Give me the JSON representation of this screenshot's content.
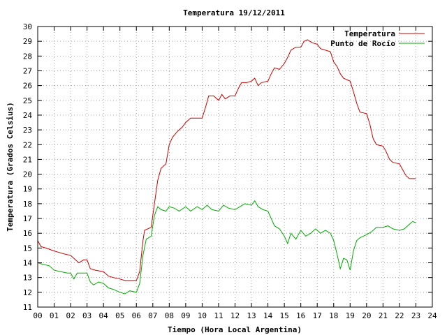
{
  "chart_data": {
    "type": "line",
    "title": "Temperatura 19/12/2011",
    "xlabel": "Tiempo (Hora Local Argentina)",
    "ylabel": "Temperatura (Grados Celsius)",
    "xlim": [
      0,
      24
    ],
    "ylim": [
      11,
      30
    ],
    "x_ticks": [
      "00",
      "01",
      "02",
      "03",
      "04",
      "05",
      "06",
      "07",
      "08",
      "09",
      "10",
      "11",
      "12",
      "13",
      "14",
      "15",
      "16",
      "17",
      "18",
      "19",
      "20",
      "21",
      "22",
      "23",
      "24"
    ],
    "y_ticks": [
      "11",
      "12",
      "13",
      "14",
      "15",
      "16",
      "17",
      "18",
      "19",
      "20",
      "21",
      "22",
      "23",
      "24",
      "25",
      "26",
      "27",
      "28",
      "29",
      "30"
    ],
    "grid": true,
    "legend_position": "top-right",
    "series": [
      {
        "name": "Temperatura",
        "color": "#cc0000",
        "points": [
          [
            0.0,
            15.5
          ],
          [
            0.2,
            15.1
          ],
          [
            0.5,
            15.0
          ],
          [
            1.0,
            14.8
          ],
          [
            1.3,
            14.7
          ],
          [
            1.6,
            14.6
          ],
          [
            2.0,
            14.5
          ],
          [
            2.3,
            14.2
          ],
          [
            2.5,
            14.0
          ],
          [
            2.8,
            14.2
          ],
          [
            3.0,
            14.2
          ],
          [
            3.2,
            13.6
          ],
          [
            3.5,
            13.5
          ],
          [
            4.0,
            13.4
          ],
          [
            4.3,
            13.1
          ],
          [
            4.6,
            13.0
          ],
          [
            5.0,
            12.9
          ],
          [
            5.3,
            12.8
          ],
          [
            5.6,
            12.8
          ],
          [
            6.0,
            12.8
          ],
          [
            6.2,
            13.4
          ],
          [
            6.4,
            15.5
          ],
          [
            6.5,
            16.2
          ],
          [
            6.9,
            16.4
          ],
          [
            7.1,
            18.0
          ],
          [
            7.3,
            19.6
          ],
          [
            7.5,
            20.4
          ],
          [
            7.8,
            20.7
          ],
          [
            8.0,
            22.0
          ],
          [
            8.2,
            22.5
          ],
          [
            8.5,
            22.9
          ],
          [
            8.8,
            23.2
          ],
          [
            9.0,
            23.5
          ],
          [
            9.3,
            23.8
          ],
          [
            9.7,
            23.8
          ],
          [
            10.0,
            23.8
          ],
          [
            10.2,
            24.5
          ],
          [
            10.4,
            25.3
          ],
          [
            10.7,
            25.3
          ],
          [
            11.0,
            25.0
          ],
          [
            11.2,
            25.4
          ],
          [
            11.4,
            25.1
          ],
          [
            11.7,
            25.3
          ],
          [
            12.0,
            25.3
          ],
          [
            12.2,
            25.8
          ],
          [
            12.4,
            26.2
          ],
          [
            12.7,
            26.2
          ],
          [
            13.0,
            26.3
          ],
          [
            13.2,
            26.5
          ],
          [
            13.4,
            26.0
          ],
          [
            13.6,
            26.2
          ],
          [
            14.0,
            26.3
          ],
          [
            14.2,
            26.8
          ],
          [
            14.4,
            27.2
          ],
          [
            14.7,
            27.1
          ],
          [
            15.0,
            27.5
          ],
          [
            15.2,
            27.9
          ],
          [
            15.4,
            28.4
          ],
          [
            15.7,
            28.6
          ],
          [
            16.0,
            28.6
          ],
          [
            16.2,
            29.0
          ],
          [
            16.4,
            29.1
          ],
          [
            16.7,
            28.9
          ],
          [
            17.0,
            28.8
          ],
          [
            17.2,
            28.5
          ],
          [
            17.5,
            28.4
          ],
          [
            17.8,
            28.3
          ],
          [
            18.0,
            27.6
          ],
          [
            18.2,
            27.3
          ],
          [
            18.4,
            26.8
          ],
          [
            18.6,
            26.5
          ],
          [
            19.0,
            26.3
          ],
          [
            19.2,
            25.6
          ],
          [
            19.4,
            24.8
          ],
          [
            19.6,
            24.2
          ],
          [
            20.0,
            24.1
          ],
          [
            20.2,
            23.4
          ],
          [
            20.4,
            22.4
          ],
          [
            20.6,
            22.0
          ],
          [
            21.0,
            21.9
          ],
          [
            21.2,
            21.5
          ],
          [
            21.4,
            21.0
          ],
          [
            21.6,
            20.8
          ],
          [
            22.0,
            20.7
          ],
          [
            22.2,
            20.3
          ],
          [
            22.4,
            19.9
          ],
          [
            22.6,
            19.7
          ],
          [
            23.0,
            19.7
          ]
        ]
      },
      {
        "name": "Punto de Rocío",
        "color": "#00aa00",
        "points": [
          [
            0.0,
            14.0
          ],
          [
            0.3,
            13.9
          ],
          [
            0.7,
            13.8
          ],
          [
            1.0,
            13.5
          ],
          [
            1.4,
            13.4
          ],
          [
            1.8,
            13.3
          ],
          [
            2.0,
            13.3
          ],
          [
            2.2,
            12.9
          ],
          [
            2.4,
            13.3
          ],
          [
            2.8,
            13.3
          ],
          [
            3.0,
            13.3
          ],
          [
            3.2,
            12.7
          ],
          [
            3.4,
            12.5
          ],
          [
            3.7,
            12.7
          ],
          [
            4.0,
            12.6
          ],
          [
            4.3,
            12.3
          ],
          [
            4.6,
            12.2
          ],
          [
            5.0,
            12.0
          ],
          [
            5.3,
            11.9
          ],
          [
            5.6,
            12.1
          ],
          [
            6.0,
            12.0
          ],
          [
            6.2,
            12.6
          ],
          [
            6.4,
            14.5
          ],
          [
            6.6,
            15.6
          ],
          [
            6.9,
            15.8
          ],
          [
            7.1,
            17.2
          ],
          [
            7.3,
            17.8
          ],
          [
            7.5,
            17.6
          ],
          [
            7.8,
            17.5
          ],
          [
            8.0,
            17.8
          ],
          [
            8.3,
            17.7
          ],
          [
            8.6,
            17.5
          ],
          [
            9.0,
            17.8
          ],
          [
            9.3,
            17.5
          ],
          [
            9.7,
            17.8
          ],
          [
            10.0,
            17.6
          ],
          [
            10.3,
            17.9
          ],
          [
            10.6,
            17.6
          ],
          [
            11.0,
            17.5
          ],
          [
            11.3,
            17.9
          ],
          [
            11.6,
            17.7
          ],
          [
            12.0,
            17.6
          ],
          [
            12.3,
            17.8
          ],
          [
            12.6,
            18.0
          ],
          [
            13.0,
            17.9
          ],
          [
            13.2,
            18.2
          ],
          [
            13.4,
            17.8
          ],
          [
            13.7,
            17.6
          ],
          [
            14.0,
            17.5
          ],
          [
            14.2,
            17.0
          ],
          [
            14.4,
            16.5
          ],
          [
            14.7,
            16.3
          ],
          [
            15.0,
            15.8
          ],
          [
            15.2,
            15.3
          ],
          [
            15.4,
            16.0
          ],
          [
            15.7,
            15.6
          ],
          [
            16.0,
            16.2
          ],
          [
            16.3,
            15.8
          ],
          [
            16.6,
            16.0
          ],
          [
            16.9,
            16.3
          ],
          [
            17.2,
            16.0
          ],
          [
            17.5,
            16.2
          ],
          [
            17.8,
            16.0
          ],
          [
            18.0,
            15.5
          ],
          [
            18.2,
            14.6
          ],
          [
            18.4,
            13.6
          ],
          [
            18.6,
            14.3
          ],
          [
            18.8,
            14.2
          ],
          [
            19.0,
            13.5
          ],
          [
            19.2,
            14.8
          ],
          [
            19.4,
            15.5
          ],
          [
            19.6,
            15.7
          ],
          [
            20.0,
            15.9
          ],
          [
            20.3,
            16.1
          ],
          [
            20.6,
            16.4
          ],
          [
            21.0,
            16.4
          ],
          [
            21.3,
            16.5
          ],
          [
            21.6,
            16.3
          ],
          [
            22.0,
            16.2
          ],
          [
            22.3,
            16.3
          ],
          [
            22.6,
            16.6
          ],
          [
            22.8,
            16.8
          ],
          [
            23.0,
            16.7
          ]
        ]
      }
    ]
  }
}
